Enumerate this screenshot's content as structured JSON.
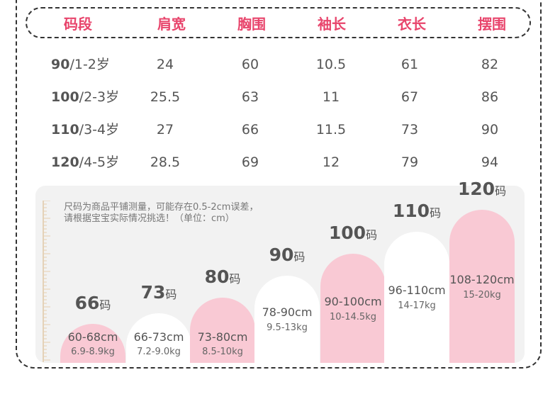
{
  "table": {
    "headers": [
      "码段",
      "肩宽",
      "胸围",
      "袖长",
      "衣长",
      "摆围"
    ],
    "rows": [
      {
        "size": "90",
        "age": "/1-2岁",
        "values": [
          "24",
          "60",
          "10.5",
          "61",
          "82"
        ]
      },
      {
        "size": "100",
        "age": "/2-3岁",
        "values": [
          "25.5",
          "63",
          "11",
          "67",
          "86"
        ]
      },
      {
        "size": "110",
        "age": "/3-4岁",
        "values": [
          "27",
          "66",
          "11.5",
          "73",
          "90"
        ]
      },
      {
        "size": "120",
        "age": "/4-5岁",
        "values": [
          "28.5",
          "69",
          "12",
          "79",
          "94"
        ]
      }
    ]
  },
  "note": {
    "line1": "尺码为商品平铺测量，可能存在0.5-2cm误差，",
    "line2": "请根据宝宝实际情况挑选！（单位：cm）"
  },
  "colors": {
    "header_text": "#e8456c",
    "pink_bar": "#f9c9d4",
    "white_bar": "#ffffff",
    "panel_bg": "#f2f2f2"
  },
  "chart_data": {
    "type": "bar",
    "title": "",
    "categories": [
      "66码",
      "73码",
      "80码",
      "90码",
      "100码",
      "110码",
      "120码"
    ],
    "bars": [
      {
        "size": "66",
        "unit": "码",
        "range": "60-68cm",
        "weight": "6.9-8.9kg",
        "value": 68,
        "color": "pink"
      },
      {
        "size": "73",
        "unit": "码",
        "range": "66-73cm",
        "weight": "7.2-9.0kg",
        "value": 73,
        "color": "white"
      },
      {
        "size": "80",
        "unit": "码",
        "range": "73-80cm",
        "weight": "8.5-10kg",
        "value": 80,
        "color": "pink"
      },
      {
        "size": "90",
        "unit": "码",
        "range": "78-90cm",
        "weight": "9.5-13kg",
        "value": 90,
        "color": "white"
      },
      {
        "size": "100",
        "unit": "码",
        "range": "90-100cm",
        "weight": "10-14.5kg",
        "value": 100,
        "color": "pink"
      },
      {
        "size": "110",
        "unit": "码",
        "range": "96-110cm",
        "weight": "14-17kg",
        "value": 110,
        "color": "white"
      },
      {
        "size": "120",
        "unit": "码",
        "range": "108-120cm",
        "weight": "15-20kg",
        "value": 120,
        "color": "pink"
      }
    ]
  }
}
